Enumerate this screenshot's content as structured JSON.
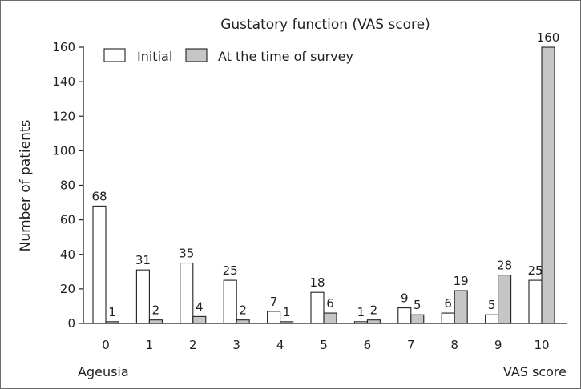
{
  "chart_data": {
    "type": "bar",
    "title": "Gustatory function (VAS score)",
    "xlabel": "",
    "ylabel": "Number of patients",
    "ylim": [
      0,
      160
    ],
    "yticks": [
      0,
      20,
      40,
      60,
      80,
      100,
      120,
      140,
      160
    ],
    "categories": [
      "0",
      "1",
      "2",
      "3",
      "4",
      "5",
      "6",
      "7",
      "8",
      "9",
      "10"
    ],
    "series": [
      {
        "name": "Initial",
        "values": [
          68,
          31,
          35,
          25,
          7,
          18,
          1,
          9,
          6,
          5,
          25
        ],
        "color": "#ffffff"
      },
      {
        "name": "At the time of survey",
        "values": [
          1,
          2,
          4,
          2,
          1,
          6,
          2,
          5,
          19,
          28,
          160
        ],
        "color": "#c6c6c6"
      }
    ],
    "x_left_annotation": "Ageusia",
    "x_right_annotation": "VAS score",
    "legend_position": "top-left",
    "grid": false
  }
}
